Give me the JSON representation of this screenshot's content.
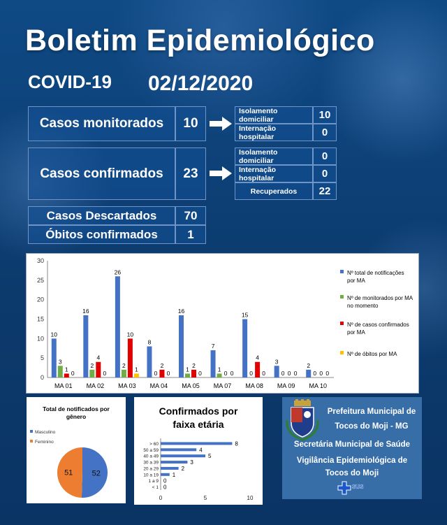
{
  "header": {
    "title": "Boletim Epidemiológico",
    "subtitle": "COVID-19",
    "date": "02/12/2020"
  },
  "summary": {
    "monitored": {
      "label": "Casos monitorados",
      "value": "10",
      "details": [
        {
          "label": "Isolamento domiciliar",
          "value": "10"
        },
        {
          "label": "Internação hospitalar",
          "value": "0"
        }
      ]
    },
    "confirmed": {
      "label": "Casos confirmados",
      "value": "23",
      "details": [
        {
          "label": "Isolamento domiciliar",
          "value": "0"
        },
        {
          "label": "Internação hospitalar",
          "value": "0"
        },
        {
          "label": "Recuperados",
          "value": "22"
        }
      ]
    },
    "discarded": {
      "label": "Casos Descartados",
      "value": "70"
    },
    "deaths": {
      "label": "Óbitos confirmados",
      "value": "1"
    }
  },
  "colors": {
    "blue": "#4472c4",
    "green": "#70ad47",
    "red": "#e00000",
    "yellow": "#ffc000",
    "orange": "#ed7d31",
    "pie_blue": "#4472c4"
  },
  "chart_data": [
    {
      "type": "bar",
      "categories": [
        "MA 01",
        "MA 02",
        "MA 03",
        "MA 04",
        "MA 05",
        "MA 07",
        "MA 08",
        "MA 09",
        "MA 10"
      ],
      "series": [
        {
          "name": "Nº total de notificações por MA",
          "values": [
            10,
            16,
            26,
            8,
            16,
            7,
            15,
            3,
            2
          ]
        },
        {
          "name": "Nº de monitorados por MA no momento",
          "values": [
            3,
            2,
            2,
            0,
            1,
            1,
            0,
            0,
            0
          ]
        },
        {
          "name": "Nº de casos confirmados por MA",
          "values": [
            1,
            4,
            10,
            2,
            2,
            0,
            4,
            0,
            0
          ]
        },
        {
          "name": "Nº de óbitos por MA",
          "values": [
            0,
            0,
            1,
            0,
            0,
            0,
            0,
            0,
            0
          ]
        }
      ],
      "ylim": [
        0,
        30
      ],
      "yticks": [
        0,
        5,
        10,
        15,
        20,
        25,
        30
      ],
      "legend": "right"
    },
    {
      "type": "pie",
      "title": "Total de notificados  por gênero",
      "labels": [
        "Masculino",
        "Feminino"
      ],
      "values": [
        52,
        51
      ],
      "legend": "top-left"
    },
    {
      "type": "bar",
      "orientation": "horizontal",
      "title": "Confirmados por faixa etária",
      "categories": [
        "> 60",
        "50 a 59",
        "40 a 49",
        "30 a 39",
        "20 a 29",
        "10 a 19",
        "1 a 9",
        "< 1"
      ],
      "values": [
        8,
        4,
        5,
        3,
        2,
        1,
        0,
        0
      ],
      "xlim": [
        0,
        10
      ],
      "xticks": [
        0,
        5,
        10
      ]
    }
  ],
  "org": {
    "line1": "Prefeitura Municipal de",
    "line2": "Tocos do Moji - MG",
    "line3": "Secretária Municipal de Saúde",
    "line4": "Vigilância Epidemiológica de",
    "line5": "Tocos do Moji",
    "sus": "SUS"
  }
}
